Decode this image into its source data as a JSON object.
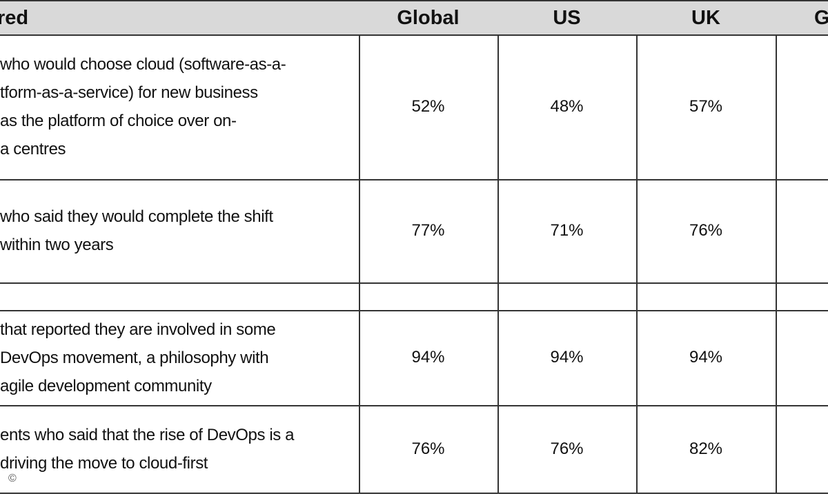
{
  "table": {
    "header": [
      "red",
      "Global",
      "US",
      "UK",
      "G"
    ],
    "rows": [
      {
        "label_lines": [
          "who would choose cloud (software-as-a-",
          "tform-as-a-service) for new business",
          "as the platform of choice over on-",
          "a centres"
        ],
        "values": [
          "52%",
          "48%",
          "57%"
        ]
      },
      {
        "label_lines": [
          "who said they would complete the shift",
          "within two years"
        ],
        "values": [
          "77%",
          "71%",
          "76%"
        ]
      },
      {
        "label_lines": [
          "that reported they are involved in some",
          "DevOps movement, a philosophy with",
          "agile development community"
        ],
        "values": [
          "94%",
          "94%",
          "94%"
        ]
      },
      {
        "label_lines": [
          "ents who said that the rise of DevOps is a",
          "driving the move to cloud-first"
        ],
        "values": [
          "76%",
          "76%",
          "82%"
        ]
      }
    ],
    "copyright": "©"
  }
}
